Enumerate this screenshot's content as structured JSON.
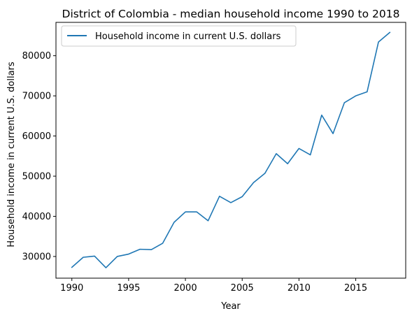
{
  "chart_data": {
    "type": "line",
    "title": "District of Colombia - median household income 1990 to 2018",
    "xlabel": "Year",
    "ylabel": "Household income in current U.S. dollars",
    "xlim": [
      1988.6,
      2019.4
    ],
    "ylim": [
      24600,
      88300
    ],
    "xticks": [
      1990,
      1995,
      2000,
      2005,
      2010,
      2015
    ],
    "yticks": [
      30000,
      40000,
      50000,
      60000,
      70000,
      80000
    ],
    "grid": false,
    "legend_position": "top-left",
    "colors": {
      "series": "#1f77b4",
      "axes": "#000000",
      "background": "#ffffff"
    },
    "series": [
      {
        "name": "Household income in current U.S. dollars",
        "x": [
          1990,
          1991,
          1992,
          1993,
          1994,
          1995,
          1996,
          1997,
          1998,
          1999,
          2000,
          2001,
          2002,
          2003,
          2004,
          2005,
          2006,
          2007,
          2008,
          2009,
          2010,
          2011,
          2012,
          2013,
          2014,
          2015,
          2016,
          2017,
          2018
        ],
        "y": [
          27300,
          29800,
          30100,
          27200,
          30000,
          30600,
          31800,
          31700,
          33300,
          38500,
          41100,
          41100,
          38900,
          45000,
          43400,
          44900,
          48400,
          50700,
          55600,
          53100,
          56900,
          55300,
          65200,
          60600,
          68300,
          70000,
          71000,
          83400,
          85800
        ]
      }
    ]
  }
}
